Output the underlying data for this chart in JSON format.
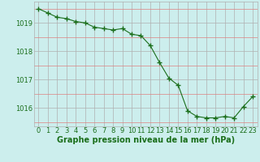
{
  "x": [
    0,
    1,
    2,
    3,
    4,
    5,
    6,
    7,
    8,
    9,
    10,
    11,
    12,
    13,
    14,
    15,
    16,
    17,
    18,
    19,
    20,
    21,
    22,
    23
  ],
  "y": [
    1019.5,
    1019.35,
    1019.2,
    1019.15,
    1019.05,
    1019.0,
    1018.85,
    1018.8,
    1018.75,
    1018.8,
    1018.6,
    1018.55,
    1018.2,
    1017.6,
    1017.05,
    1016.8,
    1015.9,
    1015.7,
    1015.65,
    1015.65,
    1015.7,
    1015.65,
    1016.05,
    1016.4
  ],
  "line_color": "#1a6e1a",
  "marker": "+",
  "marker_size": 4.0,
  "bg_color": "#cceeed",
  "major_grid_color": "#b0b0b0",
  "minor_grid_color": "#e08080",
  "label_color": "#1a6e1a",
  "xlabel": "Graphe pression niveau de la mer (hPa)",
  "yticks": [
    1016,
    1017,
    1018,
    1019
  ],
  "xticks": [
    0,
    1,
    2,
    3,
    4,
    5,
    6,
    7,
    8,
    9,
    10,
    11,
    12,
    13,
    14,
    15,
    16,
    17,
    18,
    19,
    20,
    21,
    22,
    23
  ],
  "ylim": [
    1015.35,
    1019.75
  ],
  "xlim": [
    -0.5,
    23.5
  ],
  "tick_fontsize": 6.0,
  "xlabel_fontsize": 7.0
}
